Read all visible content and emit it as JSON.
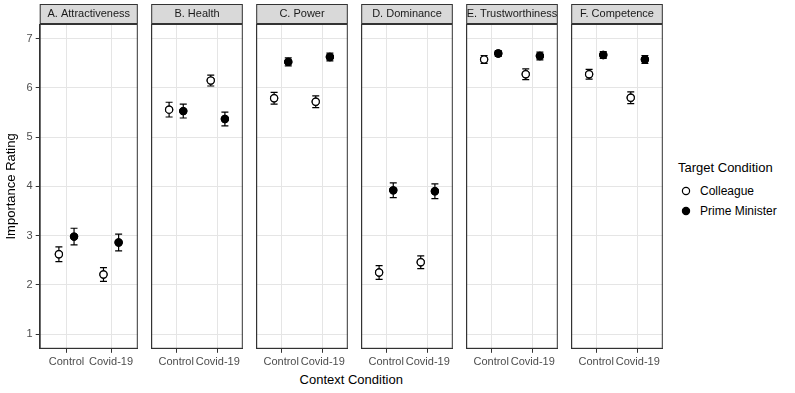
{
  "chart_data": [
    {
      "type": "scatter",
      "title": "A. Attractiveness",
      "categories": [
        "Control",
        "Covid-19"
      ],
      "series": [
        {
          "name": "Colleague",
          "color": "#000000",
          "marker": "open_circle",
          "values": [
            2.62,
            2.21
          ],
          "errors": [
            0.15,
            0.14
          ]
        },
        {
          "name": "Prime Minister",
          "color": "#000000",
          "marker": "circle",
          "values": [
            2.98,
            2.86
          ],
          "errors": [
            0.17,
            0.17
          ]
        }
      ],
      "ylim": [
        0.7,
        7.3
      ],
      "yticks": [
        1,
        2,
        3,
        4,
        5,
        6,
        7
      ],
      "grid": true
    },
    {
      "type": "scatter",
      "title": "B. Health",
      "categories": [
        "Control",
        "Covid-19"
      ],
      "series": [
        {
          "name": "Colleague",
          "color": "#000000",
          "marker": "open_circle",
          "values": [
            5.56,
            6.15
          ],
          "errors": [
            0.15,
            0.11
          ]
        },
        {
          "name": "Prime Minister",
          "color": "#000000",
          "marker": "circle",
          "values": [
            5.53,
            5.37
          ],
          "errors": [
            0.14,
            0.14
          ]
        }
      ],
      "ylim": [
        0.7,
        7.3
      ],
      "yticks": [
        1,
        2,
        3,
        4,
        5,
        6,
        7
      ],
      "grid": true,
      "tick_labels": "x"
    },
    {
      "type": "scatter",
      "title": "C. Power",
      "categories": [
        "Control",
        "Covid-19"
      ],
      "series": [
        {
          "name": "Colleague",
          "color": "#000000",
          "marker": "open_circle",
          "values": [
            5.79,
            5.72
          ],
          "errors": [
            0.12,
            0.12
          ]
        },
        {
          "name": "Prime Minister",
          "color": "#000000",
          "marker": "circle",
          "values": [
            6.53,
            6.63
          ],
          "errors": [
            0.08,
            0.08
          ]
        }
      ],
      "ylim": [
        0.7,
        7.3
      ],
      "yticks": [
        1,
        2,
        3,
        4,
        5,
        6,
        7
      ],
      "grid": true,
      "tick_labels": "x"
    },
    {
      "type": "scatter",
      "title": "D. Dominance",
      "categories": [
        "Control",
        "Covid-19"
      ],
      "series": [
        {
          "name": "Colleague",
          "color": "#000000",
          "marker": "open_circle",
          "values": [
            2.25,
            2.46
          ],
          "errors": [
            0.14,
            0.13
          ]
        },
        {
          "name": "Prime Minister",
          "color": "#000000",
          "marker": "circle",
          "values": [
            3.92,
            3.9
          ],
          "errors": [
            0.15,
            0.15
          ]
        }
      ],
      "ylim": [
        0.7,
        7.3
      ],
      "yticks": [
        1,
        2,
        3,
        4,
        5,
        6,
        7
      ],
      "grid": true,
      "tick_labels": "x"
    },
    {
      "type": "scatter",
      "title": "E. Trustworthiness",
      "categories": [
        "Control",
        "Covid-19"
      ],
      "series": [
        {
          "name": "Colleague",
          "color": "#000000",
          "marker": "open_circle",
          "values": [
            6.58,
            6.28
          ],
          "errors": [
            0.08,
            0.11
          ]
        },
        {
          "name": "Prime Minister",
          "color": "#000000",
          "marker": "circle",
          "values": [
            6.7,
            6.65
          ],
          "errors": [
            0.06,
            0.08
          ]
        }
      ],
      "ylim": [
        0.7,
        7.3
      ],
      "yticks": [
        1,
        2,
        3,
        4,
        5,
        6,
        7
      ],
      "grid": true,
      "tick_labels": "x"
    },
    {
      "type": "scatter",
      "title": "F. Competence",
      "categories": [
        "Control",
        "Covid-19"
      ],
      "series": [
        {
          "name": "Colleague",
          "color": "#000000",
          "marker": "open_circle",
          "values": [
            6.28,
            5.8
          ],
          "errors": [
            0.1,
            0.12
          ]
        },
        {
          "name": "Prime Minister",
          "color": "#000000",
          "marker": "circle",
          "values": [
            6.67,
            6.58
          ],
          "errors": [
            0.07,
            0.08
          ]
        }
      ],
      "ylim": [
        0.7,
        7.3
      ],
      "yticks": [
        1,
        2,
        3,
        4,
        5,
        6,
        7
      ],
      "grid": true,
      "tick_labels": "x"
    }
  ],
  "x_label": "Context Condition",
  "y_label": "Importance Rating",
  "legend_title": "Target Condition"
}
